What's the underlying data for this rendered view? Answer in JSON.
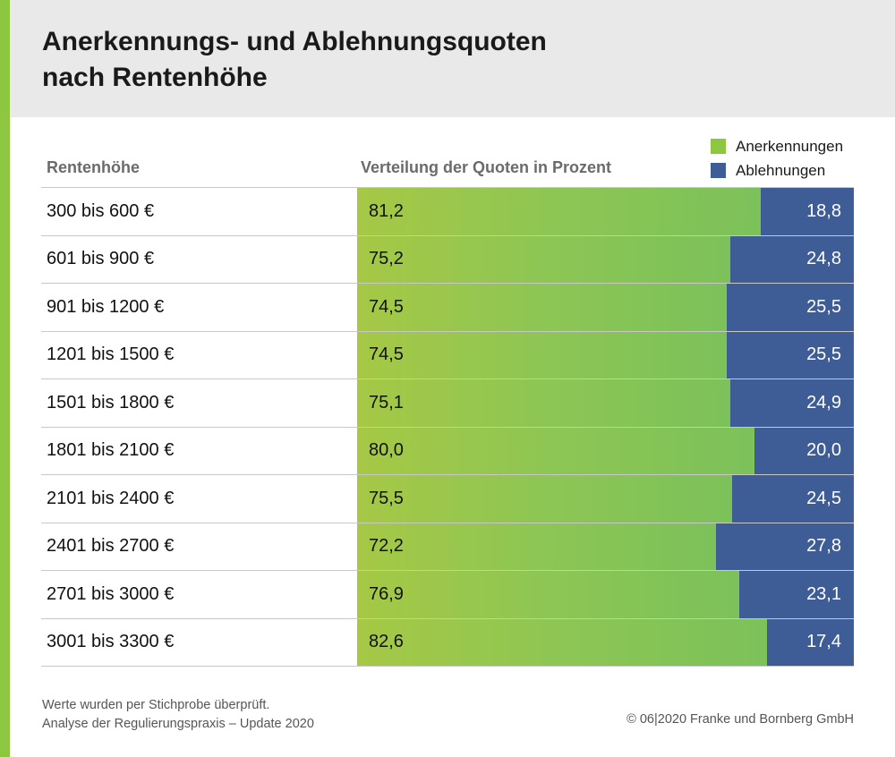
{
  "header": {
    "title_line1": "Anerkennungs- und Ablehnungsquoten",
    "title_line2": "nach Rentenhöhe"
  },
  "legend": [
    {
      "label": "Anerkennungen",
      "color": "#8dc63f"
    },
    {
      "label": "Ablehnungen",
      "color": "#3e5c95"
    }
  ],
  "columns": {
    "left": "Rentenhöhe",
    "right": "Verteilung der Quoten in Prozent"
  },
  "chart_data": {
    "type": "bar",
    "stacked": true,
    "orientation": "horizontal",
    "categories": [
      "300 bis 600 €",
      "601 bis 900 €",
      "901 bis 1200 €",
      "1201 bis 1500 €",
      "1501 bis 1800 €",
      "1801 bis 2100 €",
      "2101 bis 2400 €",
      "2401 bis 2700 €",
      "2701 bis 3000 €",
      "3001 bis 3300 €"
    ],
    "series": [
      {
        "name": "Anerkennungen",
        "values": [
          81.2,
          75.2,
          74.5,
          74.5,
          75.1,
          80.0,
          75.5,
          72.2,
          76.9,
          82.6
        ],
        "labels": [
          "81,2",
          "75,2",
          "74,5",
          "74,5",
          "75,1",
          "80,0",
          "75,5",
          "72,2",
          "76,9",
          "82,6"
        ]
      },
      {
        "name": "Ablehnungen",
        "values": [
          18.8,
          24.8,
          25.5,
          25.5,
          24.9,
          20.0,
          24.5,
          27.8,
          23.1,
          17.4
        ],
        "labels": [
          "18,8",
          "24,8",
          "25,5",
          "25,5",
          "24,9",
          "20,0",
          "24,5",
          "27,8",
          "23,1",
          "17,4"
        ]
      }
    ],
    "xlim": [
      0,
      100
    ],
    "legend_position": "top-right"
  },
  "footer": {
    "note_line1": "Werte wurden per Stichprobe überprüft.",
    "note_line2": "Analyse der Regulierungspraxis – Update 2020",
    "copyright": "© 06|2020 Franke und Bornberg GmbH"
  }
}
